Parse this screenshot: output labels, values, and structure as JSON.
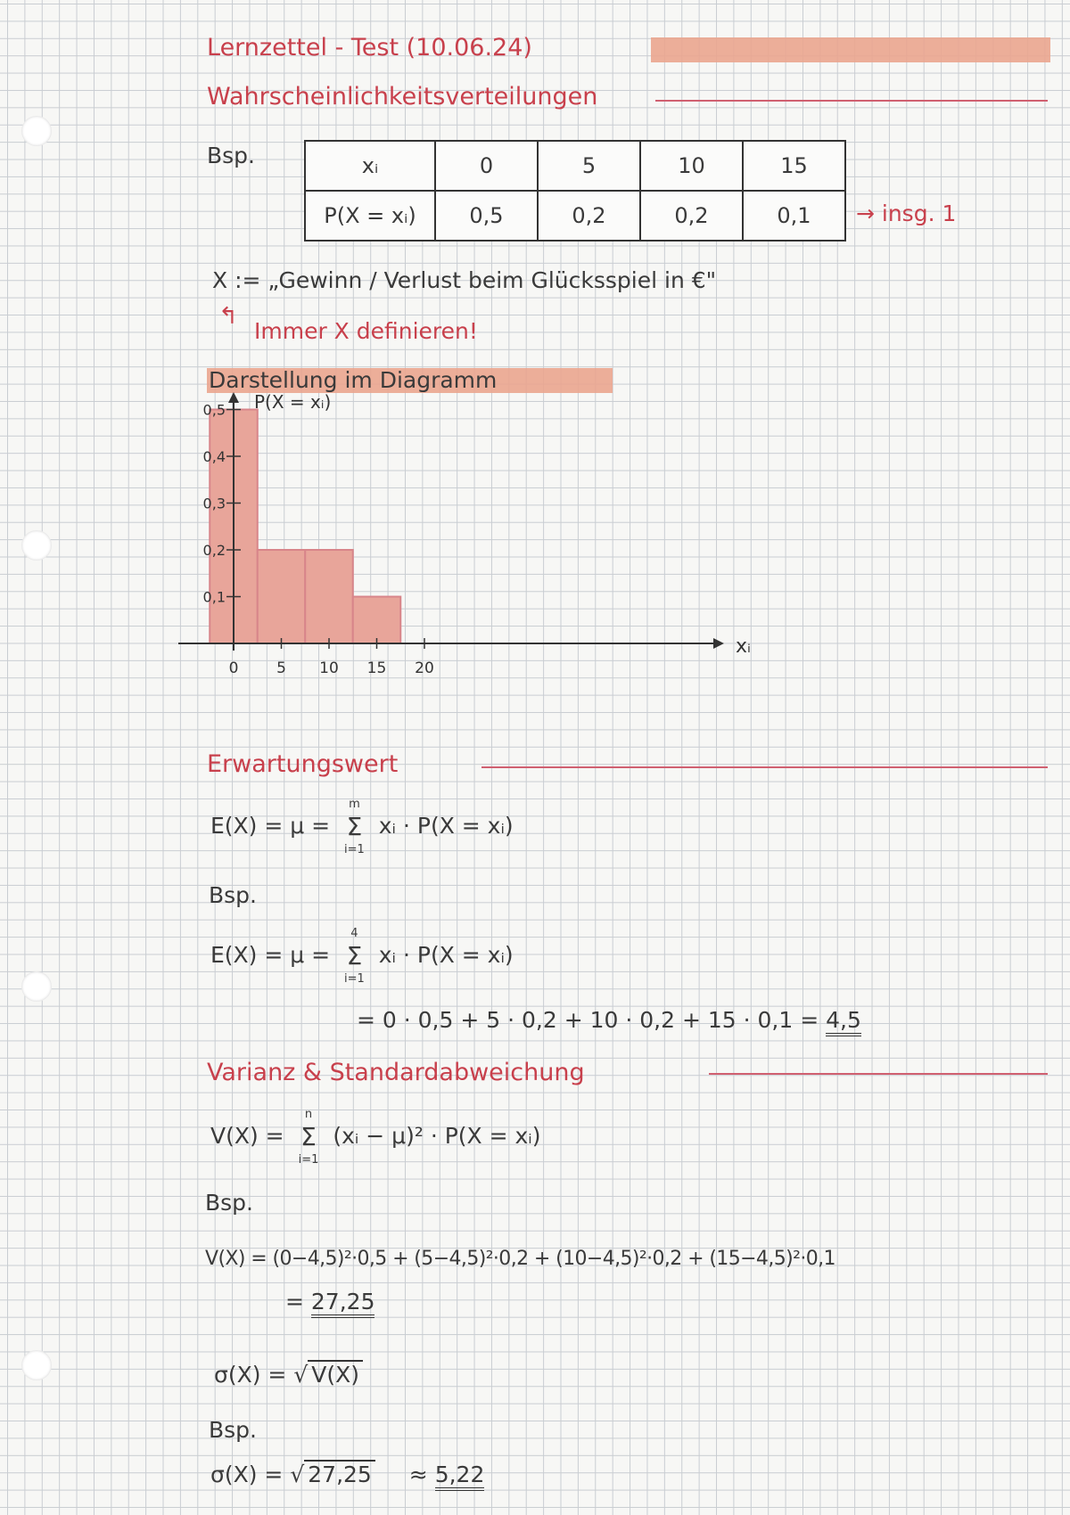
{
  "title": "Lernzettel - Test (10.06.24)",
  "section1": {
    "heading": "Wahrscheinlichkeitsverteilungen",
    "example_label": "Bsp.",
    "table": {
      "row_headers": [
        "xᵢ",
        "P(X = xᵢ)"
      ],
      "x_values": [
        "0",
        "5",
        "10",
        "15"
      ],
      "p_values": [
        "0,5",
        "0,2",
        "0,2",
        "0,1"
      ]
    },
    "total_note": "→ insg. 1",
    "definition": "X := „Gewinn / Verlust beim Glücksspiel in €\"",
    "reminder": "Immer X definieren!"
  },
  "chart_section": {
    "heading": "Darstellung im Diagramm"
  },
  "chart_data": {
    "type": "bar",
    "title": "",
    "xlabel": "xᵢ",
    "ylabel": "P(X = xᵢ)",
    "categories": [
      0,
      5,
      10,
      15
    ],
    "values": [
      0.5,
      0.2,
      0.2,
      0.1
    ],
    "xticks": [
      "0",
      "5",
      "10",
      "15",
      "20"
    ],
    "yticks": [
      "0,1",
      "0,2",
      "0,3",
      "0,4",
      "0,5"
    ],
    "xlim": [
      0,
      20
    ],
    "ylim": [
      0,
      0.5
    ],
    "bar_color": "#e8a59a",
    "grid": false
  },
  "section2": {
    "heading": "Erwartungswert",
    "formula_lhs": "E(X) = μ =",
    "sum_top": "m",
    "sum_bottom": "i=1",
    "formula_rhs": "xᵢ · P(X = xᵢ)",
    "example_label": "Bsp.",
    "ex_lhs": "E(X) = μ =",
    "ex_sum_top": "4",
    "ex_sum_bottom": "i=1",
    "ex_rhs": "xᵢ · P(X = xᵢ)",
    "ex_calc": "= 0 · 0,5 + 5 · 0,2 + 10 · 0,2 + 15 · 0,1 =",
    "ex_result": "4,5"
  },
  "section3": {
    "heading": "Varianz & Standardabweichung",
    "formula_lhs": "V(X) =",
    "sum_top": "n",
    "sum_bottom": "i=1",
    "formula_rhs": "(xᵢ − μ)² · P(X = xᵢ)",
    "example_label": "Bsp.",
    "ex_calc": "V(X) = (0−4,5)²·0,5 + (5−4,5)²·0,2 + (10−4,5)²·0,2 + (15−4,5)²·0,1",
    "ex_result_prefix": "=",
    "ex_result": "27,25",
    "sigma_lhs": "σ(X) =",
    "sigma_rad": "V(X)",
    "example2_label": "Bsp.",
    "sigma_ex_lhs": "σ(X) =",
    "sigma_ex_rad": "27,25",
    "sigma_ex_approx": "≈",
    "sigma_ex_result": "5,22"
  }
}
